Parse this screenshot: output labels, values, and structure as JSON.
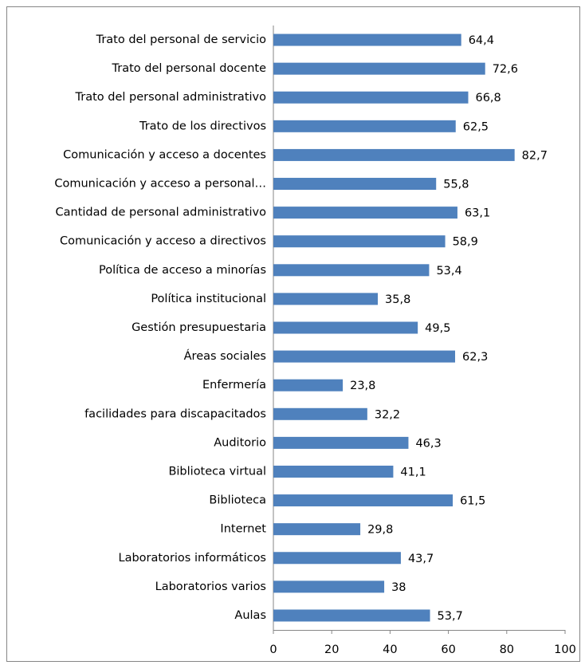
{
  "chart_data": {
    "type": "bar",
    "orientation": "horizontal",
    "categories": [
      "Trato del personal de servicio",
      "Trato del personal docente",
      "Trato del personal administrativo",
      "Trato de los directivos",
      "Comunicación y acceso a docentes",
      "Comunicación y acceso a personal…",
      "Cantidad de personal administrativo",
      "Comunicación y acceso a directivos",
      "Política de acceso a minorías",
      "Política institucional",
      "Gestión presupuestaria",
      "Áreas sociales",
      "Enfermería",
      "facilidades para discapacitados",
      "Auditorio",
      "Biblioteca virtual",
      "Biblioteca",
      "Internet",
      "Laboratorios informáticos",
      "Laboratorios varios",
      "Aulas"
    ],
    "values": [
      64.4,
      72.6,
      66.8,
      62.5,
      82.7,
      55.8,
      63.1,
      58.9,
      53.4,
      35.8,
      49.5,
      62.3,
      23.8,
      32.2,
      46.3,
      41.1,
      61.5,
      29.8,
      43.7,
      38,
      53.7
    ],
    "value_labels": [
      "64,4",
      "72,6",
      "66,8",
      "62,5",
      "82,7",
      "55,8",
      "63,1",
      "58,9",
      "53,4",
      "35,8",
      "49,5",
      "62,3",
      "23,8",
      "32,2",
      "46,3",
      "41,1",
      "61,5",
      "29,8",
      "43,7",
      "38",
      "53,7"
    ],
    "color": "#4f81bd",
    "xlim": [
      0,
      100
    ],
    "xticks": [
      0,
      20,
      40,
      60,
      80,
      100
    ],
    "grid": false
  }
}
